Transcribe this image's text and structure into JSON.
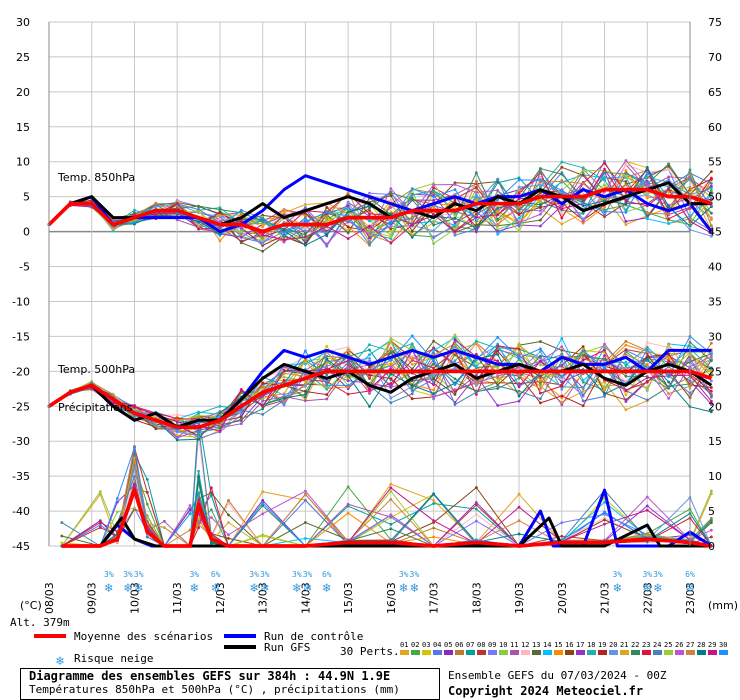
{
  "chart_data": {
    "type": "line",
    "title": "Diagramme des ensembles GEFS sur 384h : 44.9N 1.9E",
    "subtitle": "Températures 850hPa et 500hPa (°C) , précipitations (mm)",
    "left_axis": {
      "unit": "(°C)",
      "ticks": [
        30,
        25,
        20,
        15,
        10,
        5,
        0,
        -5,
        -10,
        -15,
        -20,
        -25,
        -30,
        -35,
        -40,
        -45
      ],
      "ylim": [
        -45,
        30
      ]
    },
    "right_axis": {
      "unit": "(mm)",
      "ticks": [
        75,
        70,
        65,
        60,
        55,
        50,
        45,
        40,
        35,
        30,
        25,
        20,
        15,
        10,
        5,
        0
      ],
      "ylim": [
        0,
        75
      ]
    },
    "x_labels": [
      "08/03",
      "09/03",
      "10/03",
      "11/03",
      "12/03",
      "13/03",
      "14/03",
      "15/03",
      "16/03",
      "17/03",
      "18/03",
      "19/03",
      "20/03",
      "21/03",
      "22/03",
      "23/03"
    ],
    "panel_labels": {
      "t850": "Temp. 850hPa",
      "t500": "Temp. 500hPa",
      "precip": "Précipitations"
    },
    "altitude": "Alt. 379m",
    "snow_risk": [
      {
        "day": 1.4,
        "pct": "3%"
      },
      {
        "day": 1.85,
        "pct": "3%"
      },
      {
        "day": 2.1,
        "pct": "3%"
      },
      {
        "day": 3.4,
        "pct": "3%"
      },
      {
        "day": 3.9,
        "pct": "6%"
      },
      {
        "day": 4.8,
        "pct": "3%"
      },
      {
        "day": 5.05,
        "pct": "3%"
      },
      {
        "day": 5.8,
        "pct": "3%"
      },
      {
        "day": 6.05,
        "pct": "3%"
      },
      {
        "day": 6.5,
        "pct": "6%"
      },
      {
        "day": 8.3,
        "pct": "3%"
      },
      {
        "day": 8.55,
        "pct": "3%"
      },
      {
        "day": 13.3,
        "pct": "3%"
      },
      {
        "day": 14.0,
        "pct": "3%"
      },
      {
        "day": 14.25,
        "pct": "3%"
      },
      {
        "day": 15.0,
        "pct": "6%"
      }
    ],
    "series": [
      {
        "name": "Moyenne des scénarios",
        "color": "#ff0000",
        "t850": [
          [
            0,
            1
          ],
          [
            0.5,
            4
          ],
          [
            1,
            4
          ],
          [
            1.5,
            1
          ],
          [
            2,
            2
          ],
          [
            2.5,
            3
          ],
          [
            3,
            3
          ],
          [
            3.5,
            2
          ],
          [
            4,
            1
          ],
          [
            4.5,
            1
          ],
          [
            5,
            0
          ],
          [
            5.5,
            1
          ],
          [
            6,
            1
          ],
          [
            6.5,
            1
          ],
          [
            7,
            2
          ],
          [
            7.5,
            2
          ],
          [
            8,
            2
          ],
          [
            8.5,
            3
          ],
          [
            9,
            3
          ],
          [
            9.5,
            3
          ],
          [
            10,
            4
          ],
          [
            10.5,
            4
          ],
          [
            11,
            4
          ],
          [
            11.5,
            5
          ],
          [
            12,
            5
          ],
          [
            12.5,
            5
          ],
          [
            13,
            6
          ],
          [
            13.5,
            6
          ],
          [
            14,
            6
          ],
          [
            14.5,
            5
          ],
          [
            15,
            5
          ],
          [
            15.5,
            4
          ]
        ],
        "t500": [
          [
            0,
            -25
          ],
          [
            0.5,
            -23
          ],
          [
            1,
            -22
          ],
          [
            1.5,
            -24
          ],
          [
            2,
            -26
          ],
          [
            2.5,
            -27
          ],
          [
            3,
            -28
          ],
          [
            3.5,
            -28
          ],
          [
            4,
            -27
          ],
          [
            4.5,
            -25
          ],
          [
            5,
            -23
          ],
          [
            5.5,
            -22
          ],
          [
            6,
            -21
          ],
          [
            6.5,
            -20
          ],
          [
            7,
            -20
          ],
          [
            7.5,
            -20
          ],
          [
            8,
            -20
          ],
          [
            8.5,
            -20
          ],
          [
            9,
            -20
          ],
          [
            9.5,
            -20
          ],
          [
            10,
            -20
          ],
          [
            10.5,
            -20
          ],
          [
            11,
            -20
          ],
          [
            11.5,
            -20
          ],
          [
            12,
            -20
          ],
          [
            12.5,
            -20
          ],
          [
            13,
            -20
          ],
          [
            13.5,
            -20
          ],
          [
            14,
            -20
          ],
          [
            14.5,
            -20
          ],
          [
            15,
            -20
          ],
          [
            15.5,
            -21
          ]
        ],
        "precip": [
          [
            0.3,
            0
          ],
          [
            1.2,
            0
          ],
          [
            1.6,
            1
          ],
          [
            2,
            8
          ],
          [
            2.3,
            2
          ],
          [
            2.7,
            0
          ],
          [
            3.3,
            0
          ],
          [
            3.5,
            6
          ],
          [
            3.8,
            1
          ],
          [
            4.2,
            0
          ],
          [
            5,
            0
          ],
          [
            6,
            0
          ],
          [
            7,
            0.5
          ],
          [
            8,
            0.5
          ],
          [
            9,
            0
          ],
          [
            10,
            0.5
          ],
          [
            11,
            0
          ],
          [
            12,
            0.5
          ],
          [
            13,
            0.5
          ],
          [
            14,
            1
          ],
          [
            15,
            0.5
          ],
          [
            15.5,
            0
          ]
        ]
      },
      {
        "name": "Run de contrôle",
        "color": "#0000ff",
        "t850": [
          [
            0,
            1
          ],
          [
            0.5,
            4
          ],
          [
            1,
            5
          ],
          [
            1.5,
            1
          ],
          [
            2,
            2
          ],
          [
            2.5,
            2
          ],
          [
            3,
            2
          ],
          [
            3.5,
            2
          ],
          [
            4,
            0
          ],
          [
            4.5,
            1
          ],
          [
            5,
            3
          ],
          [
            5.5,
            6
          ],
          [
            6,
            8
          ],
          [
            6.5,
            7
          ],
          [
            7,
            6
          ],
          [
            7.5,
            5
          ],
          [
            8,
            4
          ],
          [
            8.5,
            3
          ],
          [
            9,
            4
          ],
          [
            9.5,
            5
          ],
          [
            10,
            4
          ],
          [
            10.5,
            5
          ],
          [
            11,
            5
          ],
          [
            11.5,
            6
          ],
          [
            12,
            4
          ],
          [
            12.5,
            6
          ],
          [
            13,
            5
          ],
          [
            13.5,
            6
          ],
          [
            14,
            4
          ],
          [
            14.5,
            3
          ],
          [
            15,
            4
          ],
          [
            15.5,
            0
          ]
        ],
        "t500": [
          [
            0,
            -25
          ],
          [
            0.5,
            -23
          ],
          [
            1,
            -22
          ],
          [
            1.5,
            -25
          ],
          [
            2,
            -27
          ],
          [
            2.5,
            -26
          ],
          [
            3,
            -28
          ],
          [
            3.5,
            -28
          ],
          [
            4,
            -27
          ],
          [
            4.5,
            -24
          ],
          [
            5,
            -20
          ],
          [
            5.5,
            -17
          ],
          [
            6,
            -18
          ],
          [
            6.5,
            -17
          ],
          [
            7,
            -18
          ],
          [
            7.5,
            -19
          ],
          [
            8,
            -18
          ],
          [
            8.5,
            -17
          ],
          [
            9,
            -18
          ],
          [
            9.5,
            -17
          ],
          [
            10,
            -18
          ],
          [
            10.5,
            -19
          ],
          [
            11,
            -19
          ],
          [
            11.5,
            -20
          ],
          [
            12,
            -18
          ],
          [
            12.5,
            -19
          ],
          [
            13,
            -19
          ],
          [
            13.5,
            -18
          ],
          [
            14,
            -20
          ],
          [
            14.5,
            -17
          ],
          [
            15,
            -17
          ],
          [
            15.5,
            -17
          ]
        ],
        "precip": [
          [
            0.3,
            0
          ],
          [
            1.2,
            0
          ],
          [
            1.6,
            3
          ],
          [
            2,
            1
          ],
          [
            2.4,
            0
          ],
          [
            3,
            0
          ],
          [
            4,
            0
          ],
          [
            5,
            0
          ],
          [
            6,
            0
          ],
          [
            7,
            0
          ],
          [
            8,
            0
          ],
          [
            9,
            0
          ],
          [
            10,
            0
          ],
          [
            11,
            0
          ],
          [
            11.5,
            5
          ],
          [
            11.8,
            0
          ],
          [
            12.5,
            0
          ],
          [
            13,
            8
          ],
          [
            13.3,
            0
          ],
          [
            14,
            0
          ],
          [
            14.5,
            0
          ],
          [
            15,
            2
          ],
          [
            15.5,
            0
          ]
        ]
      },
      {
        "name": "Run GFS",
        "color": "#000000",
        "t850": [
          [
            0,
            1
          ],
          [
            0.5,
            4
          ],
          [
            1,
            5
          ],
          [
            1.5,
            2
          ],
          [
            2,
            2
          ],
          [
            2.5,
            3
          ],
          [
            3,
            3
          ],
          [
            3.5,
            2
          ],
          [
            4,
            1
          ],
          [
            4.5,
            2
          ],
          [
            5,
            4
          ],
          [
            5.5,
            2
          ],
          [
            6,
            3
          ],
          [
            6.5,
            4
          ],
          [
            7,
            5
          ],
          [
            7.5,
            4
          ],
          [
            8,
            2
          ],
          [
            8.5,
            3
          ],
          [
            9,
            2
          ],
          [
            9.5,
            4
          ],
          [
            10,
            3
          ],
          [
            10.5,
            5
          ],
          [
            11,
            4
          ],
          [
            11.5,
            6
          ],
          [
            12,
            5
          ],
          [
            12.5,
            3
          ],
          [
            13,
            4
          ],
          [
            13.5,
            5
          ],
          [
            14,
            6
          ],
          [
            14.5,
            7
          ],
          [
            15,
            4
          ],
          [
            15.5,
            4
          ]
        ],
        "t500": [
          [
            0,
            -25
          ],
          [
            0.5,
            -23
          ],
          [
            1,
            -22
          ],
          [
            1.5,
            -25
          ],
          [
            2,
            -27
          ],
          [
            2.5,
            -26
          ],
          [
            3,
            -28
          ],
          [
            3.5,
            -27
          ],
          [
            4,
            -27
          ],
          [
            4.5,
            -24
          ],
          [
            5,
            -21
          ],
          [
            5.5,
            -19
          ],
          [
            6,
            -20
          ],
          [
            6.5,
            -21
          ],
          [
            7,
            -20
          ],
          [
            7.5,
            -22
          ],
          [
            8,
            -23
          ],
          [
            8.5,
            -21
          ],
          [
            9,
            -20
          ],
          [
            9.5,
            -19
          ],
          [
            10,
            -21
          ],
          [
            10.5,
            -20
          ],
          [
            11,
            -19
          ],
          [
            11.5,
            -20
          ],
          [
            12,
            -20
          ],
          [
            12.5,
            -19
          ],
          [
            13,
            -21
          ],
          [
            13.5,
            -22
          ],
          [
            14,
            -20
          ],
          [
            14.5,
            -19
          ],
          [
            15,
            -20
          ],
          [
            15.5,
            -22
          ]
        ],
        "precip": [
          [
            0.3,
            0
          ],
          [
            1.2,
            0
          ],
          [
            1.7,
            4
          ],
          [
            2,
            1
          ],
          [
            2.5,
            0
          ],
          [
            3.5,
            0
          ],
          [
            4,
            0
          ],
          [
            5,
            0
          ],
          [
            6,
            0
          ],
          [
            7,
            0
          ],
          [
            8,
            0
          ],
          [
            9,
            0
          ],
          [
            10,
            0
          ],
          [
            11,
            0
          ],
          [
            11.7,
            4
          ],
          [
            12,
            0
          ],
          [
            13,
            0
          ],
          [
            14,
            3
          ],
          [
            14.3,
            0
          ],
          [
            15,
            0
          ],
          [
            15.5,
            0
          ]
        ]
      }
    ],
    "member_colors": [
      "#e6a31e",
      "#44aa44",
      "#d4c400",
      "#5577ee",
      "#8a2bbd",
      "#c07a2a",
      "#00a0a0",
      "#bb3333",
      "#7777ff",
      "#88cc44",
      "#aa55aa",
      "#ffb6c1",
      "#556b2f",
      "#00bfff",
      "#ff8c00",
      "#8b4513",
      "#9932cc",
      "#20b2aa",
      "#b22222",
      "#6495ed",
      "#daa520",
      "#2e8b57",
      "#dc143c",
      "#4682b4",
      "#9acd32",
      "#ba55d3",
      "#cd853f",
      "#008080",
      "#c71585",
      "#1e90ff"
    ],
    "legend": {
      "perts_label": "30 Perts.",
      "perts_numbers": [
        "01",
        "02",
        "03",
        "04",
        "05",
        "06",
        "07",
        "08",
        "09",
        "10",
        "11",
        "12",
        "13",
        "14",
        "15",
        "16",
        "17",
        "18",
        "19",
        "20",
        "21",
        "22",
        "23",
        "24",
        "25",
        "26",
        "27",
        "28",
        "29",
        "30"
      ]
    }
  },
  "legend_labels": {
    "mean": "Moyenne des scénarios",
    "control": "Run de contrôle",
    "gfs": "Run GFS",
    "snow": "Risque neige"
  },
  "footer": {
    "ensemble": "Ensemble GEFS du 07/03/2024 - 00Z",
    "copyright": "Copyright 2024 Meteociel.fr"
  }
}
